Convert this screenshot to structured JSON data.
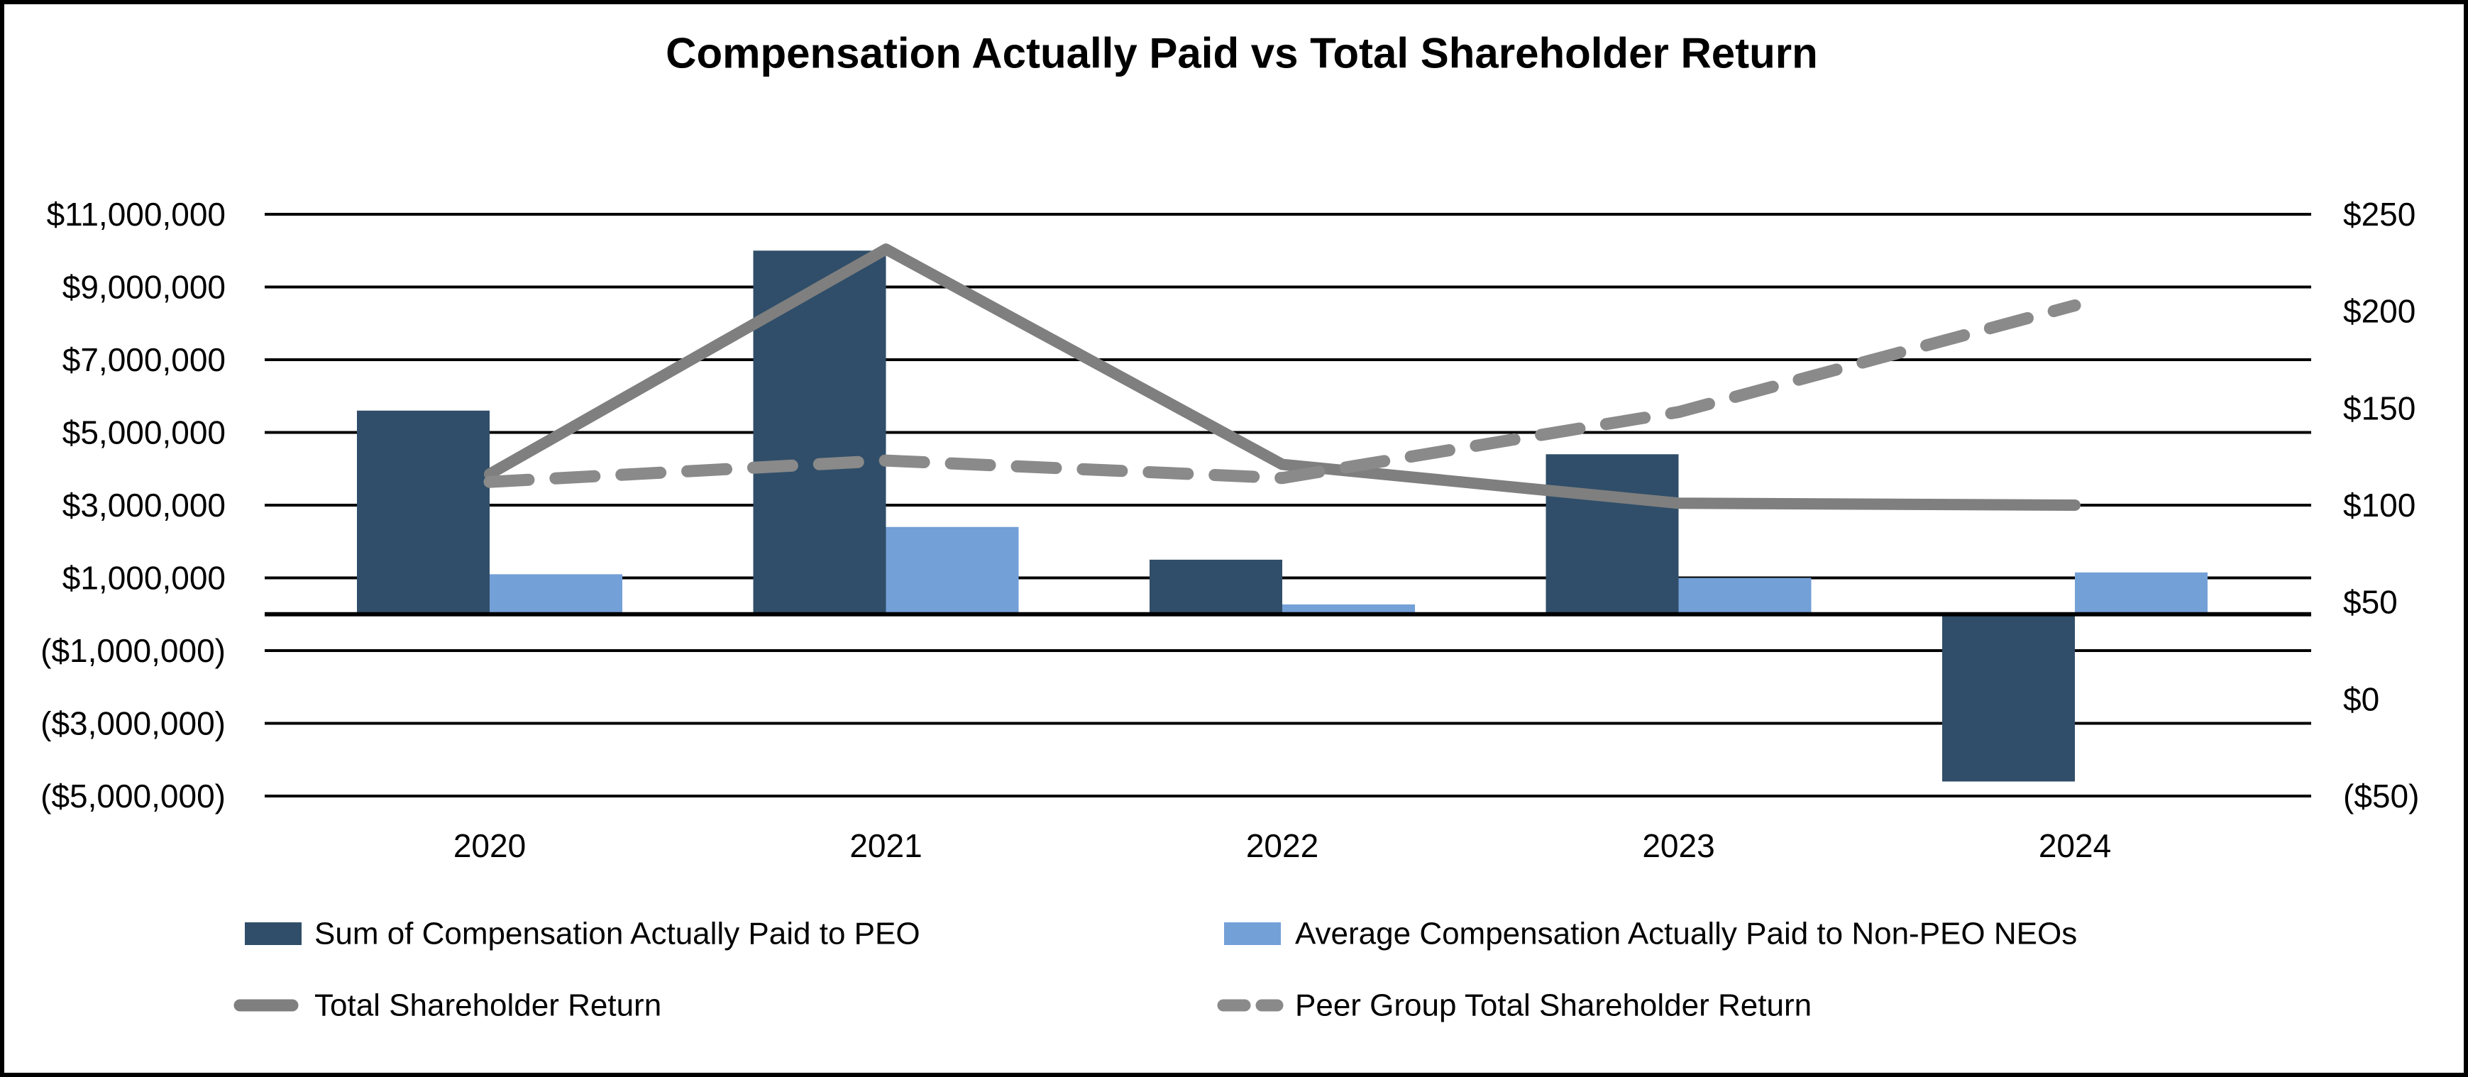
{
  "title": "Compensation Actually Paid vs Total Shareholder Return",
  "chart_data": {
    "type": "combo-bar-line",
    "title": "Compensation Actually Paid vs Total Shareholder Return",
    "categories": [
      "2020",
      "2021",
      "2022",
      "2023",
      "2024"
    ],
    "series": [
      {
        "name": "Sum of Compensation Actually Paid to PEO",
        "type": "bar",
        "axis": "left",
        "color": "#304E69",
        "values": [
          5600000,
          10000000,
          1500000,
          4400000,
          -4600000
        ]
      },
      {
        "name": "Average Compensation Actually Paid to Non-PEO NEOs",
        "type": "bar",
        "axis": "left",
        "color": "#74A0D8",
        "values": [
          1100000,
          2400000,
          270000,
          1000000,
          1150000
        ]
      },
      {
        "name": "Total Shareholder Return",
        "type": "line",
        "style": "solid",
        "axis": "right",
        "color": "#7F7F7F",
        "values": [
          116,
          232,
          121,
          101,
          100
        ]
      },
      {
        "name": "Peer Group Total Shareholder Return",
        "type": "line",
        "style": "dashed",
        "axis": "right",
        "color": "#8A8A8A",
        "values": [
          112,
          123,
          114,
          148,
          203
        ]
      }
    ],
    "left_axis": {
      "min": -5000000,
      "max": 11000000,
      "tick_step": 2000000,
      "ticks": [
        {
          "label": "$11,000,000",
          "value": 11000000
        },
        {
          "label": "$9,000,000",
          "value": 9000000
        },
        {
          "label": "$7,000,000",
          "value": 7000000
        },
        {
          "label": "$5,000,000",
          "value": 5000000
        },
        {
          "label": "$3,000,000",
          "value": 3000000
        },
        {
          "label": "$1,000,000",
          "value": 1000000
        },
        {
          "label": "($1,000,000)",
          "value": -1000000
        },
        {
          "label": "($3,000,000)",
          "value": -3000000
        },
        {
          "label": "($5,000,000)",
          "value": -5000000
        }
      ]
    },
    "right_axis": {
      "min": -50,
      "max": 250,
      "tick_step": 50,
      "ticks": [
        {
          "label": "$250",
          "value": 250
        },
        {
          "label": "$200",
          "value": 200
        },
        {
          "label": "$150",
          "value": 150
        },
        {
          "label": "$100",
          "value": 100
        },
        {
          "label": "$50",
          "value": 50
        },
        {
          "label": "$0",
          "value": 0
        },
        {
          "label": "($50)",
          "value": -50
        }
      ]
    },
    "grid": "horizontal-black-lines",
    "zero_baseline": true,
    "legend_position": "bottom-two-columns",
    "colors": {
      "background": "#FFFFFF",
      "border": "#000000",
      "gridline": "#000000",
      "bar_peo": "#304E69",
      "bar_neo": "#74A0D8",
      "line_tsr": "#7F7F7F",
      "line_peer_tsr": "#8A8A8A"
    }
  }
}
